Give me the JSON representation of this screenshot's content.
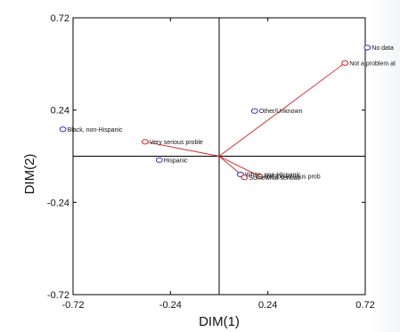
{
  "chart_data": {
    "type": "scatter",
    "title": "",
    "xlabel": "DIM(1)",
    "ylabel": "DIM(2)",
    "xlim": [
      -0.72,
      0.72
    ],
    "ylim": [
      -0.72,
      0.72
    ],
    "x_ticks": [
      -0.72,
      -0.24,
      0.24,
      0.72
    ],
    "y_ticks": [
      0.72,
      0.24,
      -0.24,
      -0.72
    ],
    "x_tick_labels": [
      "-0.72",
      "-0.24",
      "0.24",
      "0.72"
    ],
    "y_tick_labels": [
      "0.72",
      "0.24",
      "-0.24",
      "-0.72"
    ],
    "grid": false,
    "reference_lines": [
      {
        "axis": "x",
        "value": 0
      },
      {
        "axis": "y",
        "value": 0
      }
    ],
    "series": [
      {
        "name": "",
        "color": "#2b2bd0",
        "marker": "circle",
        "points": [
          {
            "x": 0.73,
            "y": 0.565,
            "label": "No data"
          },
          {
            "x": 0.175,
            "y": 0.235,
            "label": "Other/Unknown"
          },
          {
            "x": -0.77,
            "y": 0.14,
            "label": "Black, non-Hispanic"
          },
          {
            "x": -0.295,
            "y": -0.02,
            "label": "Hispanic"
          },
          {
            "x": 0.105,
            "y": -0.095,
            "label": "White, non-Hispanic"
          }
        ]
      },
      {
        "name": "",
        "color": "#d02020",
        "marker": "circle",
        "vectors_from_origin": true,
        "points": [
          {
            "x": 0.62,
            "y": 0.485,
            "label": "Not a problem at"
          },
          {
            "x": -0.365,
            "y": 0.075,
            "label": "Very serious proble"
          },
          {
            "x": 0.125,
            "y": -0.11,
            "label": "Somewhat serious"
          },
          {
            "x": 0.2,
            "y": -0.105,
            "label": "Not too serious prob"
          }
        ]
      }
    ]
  }
}
